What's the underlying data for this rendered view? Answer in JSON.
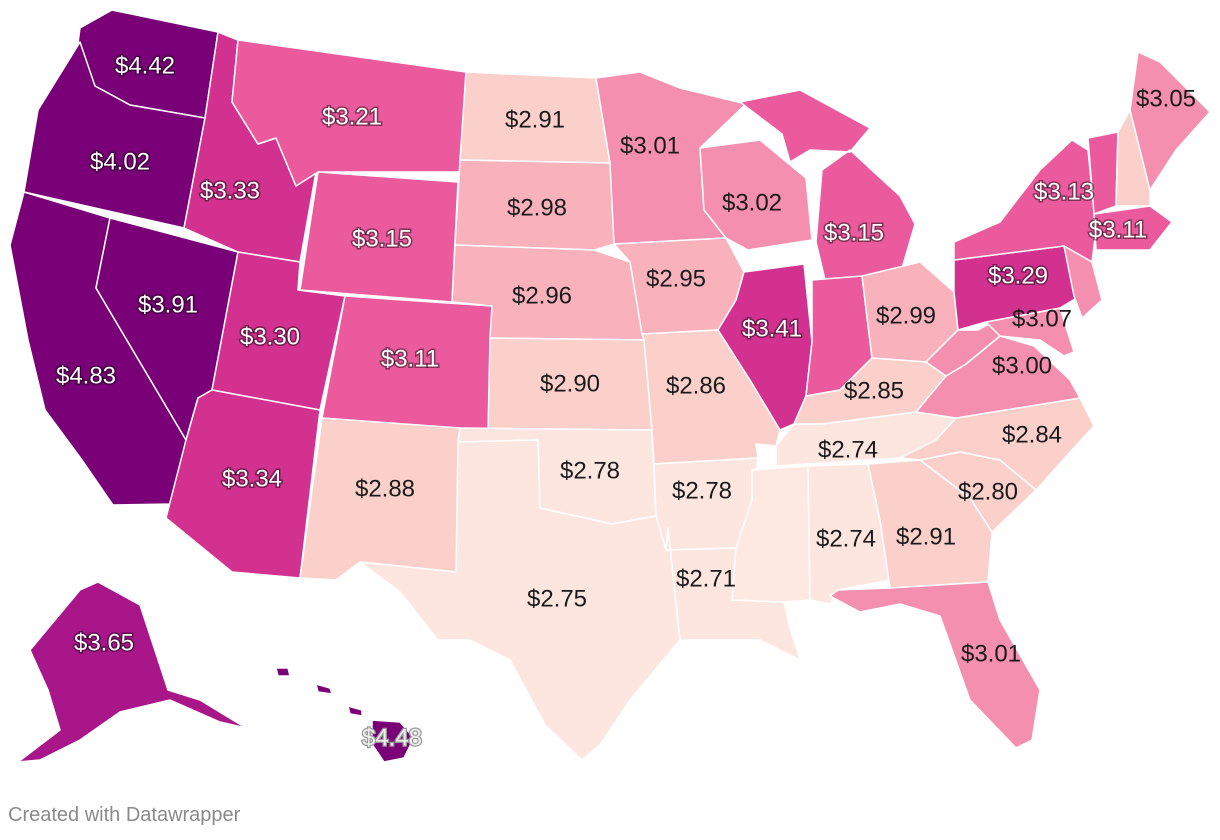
{
  "credit": "Created with Datawrapper",
  "colors": {
    "lowest": "#fde6df",
    "low": "#fbd0cb",
    "mid_low": "#f9b2bc",
    "mid": "#f48fb0",
    "mid_high": "#ea5a9c",
    "high": "#d2318f",
    "higher": "#a8168a",
    "highest": "#7a0077",
    "border": "#ffffff"
  },
  "states": [
    {
      "id": "WA",
      "label": "$4.42",
      "price": 4.42
    },
    {
      "id": "OR",
      "label": "$4.02",
      "price": 4.02
    },
    {
      "id": "CA",
      "label": "$4.83",
      "price": 4.83
    },
    {
      "id": "NV",
      "label": "$3.91",
      "price": 3.91
    },
    {
      "id": "ID",
      "label": "$3.33",
      "price": 3.33
    },
    {
      "id": "MT",
      "label": "$3.21",
      "price": 3.21
    },
    {
      "id": "WY",
      "label": "$3.15",
      "price": 3.15
    },
    {
      "id": "UT",
      "label": "$3.30",
      "price": 3.3
    },
    {
      "id": "AZ",
      "label": "$3.34",
      "price": 3.34
    },
    {
      "id": "CO",
      "label": "$3.11",
      "price": 3.11
    },
    {
      "id": "NM",
      "label": "$2.88",
      "price": 2.88
    },
    {
      "id": "ND",
      "label": "$2.91",
      "price": 2.91
    },
    {
      "id": "SD",
      "label": "$2.98",
      "price": 2.98
    },
    {
      "id": "NE",
      "label": "$2.96",
      "price": 2.96
    },
    {
      "id": "KS",
      "label": "$2.90",
      "price": 2.9
    },
    {
      "id": "OK",
      "label": "$2.78",
      "price": 2.78
    },
    {
      "id": "TX",
      "label": "$2.75",
      "price": 2.75
    },
    {
      "id": "MN",
      "label": "$3.01",
      "price": 3.01
    },
    {
      "id": "IA",
      "label": "$2.95",
      "price": 2.95
    },
    {
      "id": "MO",
      "label": "$2.86",
      "price": 2.86
    },
    {
      "id": "AR",
      "label": "$2.78",
      "price": 2.78
    },
    {
      "id": "LA",
      "label": "$2.71",
      "price": 2.71
    },
    {
      "id": "WI",
      "label": "$3.02",
      "price": 3.02
    },
    {
      "id": "IL",
      "label": "$3.41",
      "price": 3.41
    },
    {
      "id": "MI",
      "label": "$3.15",
      "price": 3.15
    },
    {
      "id": "IN",
      "label": "",
      "price": null
    },
    {
      "id": "OH",
      "label": "$2.99",
      "price": 2.99
    },
    {
      "id": "KY",
      "label": "$2.85",
      "price": 2.85
    },
    {
      "id": "TN",
      "label": "$2.74",
      "price": 2.74
    },
    {
      "id": "MS",
      "label": "",
      "price": null
    },
    {
      "id": "AL",
      "label": "$2.74",
      "price": 2.74
    },
    {
      "id": "GA",
      "label": "$2.91",
      "price": 2.91
    },
    {
      "id": "FL",
      "label": "$3.01",
      "price": 3.01
    },
    {
      "id": "SC",
      "label": "$2.80",
      "price": 2.8
    },
    {
      "id": "NC",
      "label": "$2.84",
      "price": 2.84
    },
    {
      "id": "VA",
      "label": "$3.00",
      "price": 3.0
    },
    {
      "id": "WV",
      "label": "",
      "price": null
    },
    {
      "id": "MD",
      "label": "$3.07",
      "price": 3.07
    },
    {
      "id": "PA",
      "label": "$3.29",
      "price": 3.29
    },
    {
      "id": "NY",
      "label": "$3.13",
      "price": 3.13
    },
    {
      "id": "NJ",
      "label": "",
      "price": null
    },
    {
      "id": "MA",
      "label": "$3.11",
      "price": 3.11
    },
    {
      "id": "VT",
      "label": "",
      "price": null
    },
    {
      "id": "NH",
      "label": "",
      "price": null
    },
    {
      "id": "ME",
      "label": "$3.05",
      "price": 3.05
    },
    {
      "id": "AK",
      "label": "$3.65",
      "price": 3.65
    },
    {
      "id": "HI",
      "label": "$4.48",
      "price": 4.48
    }
  ]
}
